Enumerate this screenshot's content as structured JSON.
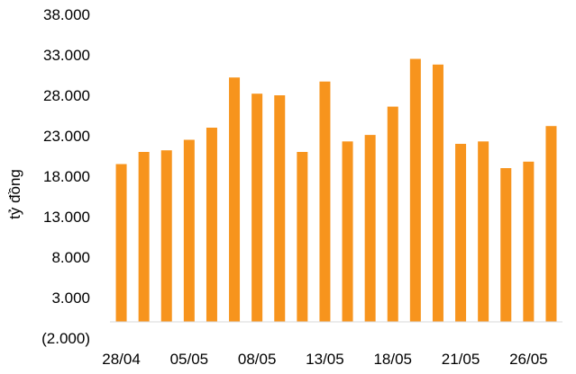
{
  "chart_data": {
    "type": "bar",
    "title": "",
    "xlabel": "",
    "ylabel": "tỷ đồng",
    "ylim": [
      -2000,
      38000
    ],
    "yticks": [
      -2000,
      3000,
      8000,
      13000,
      18000,
      23000,
      28000,
      33000,
      38000
    ],
    "ytick_labels": [
      "(2.000)",
      "3.000",
      "8.000",
      "13.000",
      "18.000",
      "23.000",
      "28.000",
      "33.000",
      "38.000"
    ],
    "negative_label_color": "#ff0000",
    "bar_color": "#f7941d",
    "grid": false,
    "legend": "none",
    "categories": [
      "28/04",
      "",
      "",
      "05/05",
      "",
      "",
      "08/05",
      "",
      "",
      "13/05",
      "",
      "",
      "18/05",
      "",
      "",
      "21/05",
      "",
      "",
      "26/05",
      ""
    ],
    "visible_category_labels": [
      "28/04",
      "05/05",
      "08/05",
      "13/05",
      "18/05",
      "21/05",
      "26/05"
    ],
    "values": [
      19500,
      21000,
      21200,
      22500,
      24000,
      30200,
      28200,
      28000,
      21000,
      29700,
      22300,
      23100,
      26600,
      32500,
      31800,
      22000,
      22300,
      19000,
      19800,
      24200
    ]
  }
}
